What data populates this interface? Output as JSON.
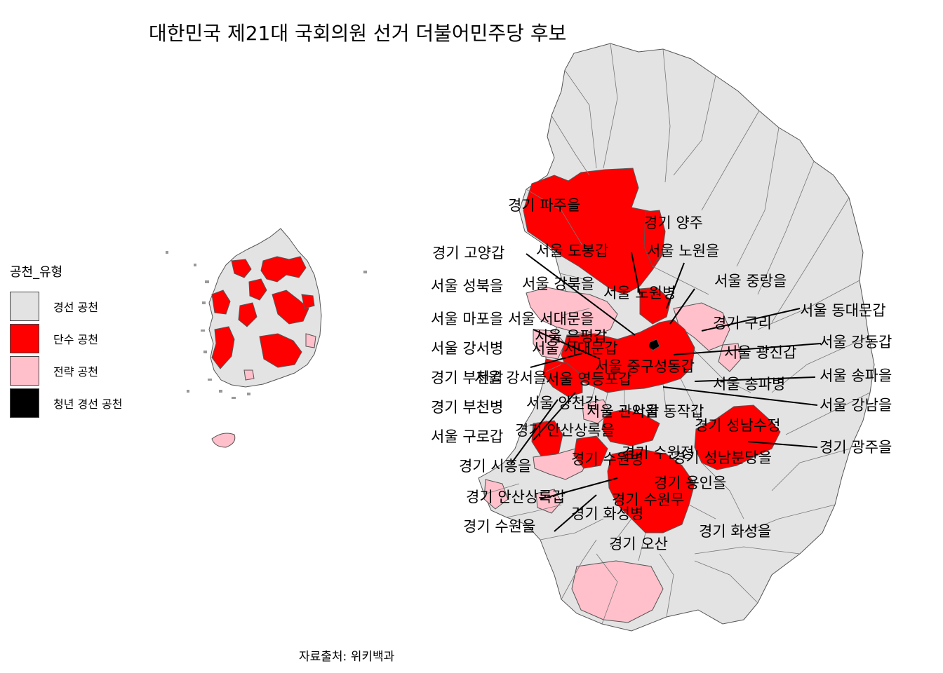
{
  "title": "대한민국 제21대 국회의원 선거 더불어민주당 후보",
  "caption": "자료출처: 위키백과",
  "legend": {
    "title": "공천_유형",
    "items": [
      {
        "label": "경선 공천",
        "color": "#e3e3e3"
      },
      {
        "label": "단수 공천",
        "color": "#ff0000"
      },
      {
        "label": "전략 공천",
        "color": "#ffc0cb"
      },
      {
        "label": "청년 경선 공천",
        "color": "#000000"
      }
    ]
  },
  "labels": [
    "경기 파주을",
    "경기 양주",
    "경기 고양갑",
    "서울 도봉갑",
    "서울 노원을",
    "서울 성북을",
    "서울 강북을",
    "서울 노원병",
    "서울 중랑을",
    "서울 동대문갑",
    "서울 마포을",
    "서울 서대문을",
    "경기 구리",
    "서울 은평갑",
    "서울 강동갑",
    "서울 강서병",
    "서울 서대문갑",
    "서울 광진갑",
    "경기 부천갑",
    "서울 강서을",
    "서울 중구성동갑",
    "서울 송파을",
    "서울 영등포갑",
    "서울 송파병",
    "경기 부천병",
    "서울 양천갑",
    "서울 강남을",
    "서울 관악갑",
    "서울 동작갑",
    "경기 성남수정",
    "서울 구로갑",
    "경기 안산상록을",
    "경기 광주을",
    "경기 수원병",
    "경기 수원정",
    "경기 성남분당을",
    "경기 시흥을",
    "경기 용인을",
    "경기 안산상록갑",
    "경기 수원무",
    "경기 화성병",
    "경기 수원을",
    "경기 화성을",
    "경기 오산"
  ]
}
